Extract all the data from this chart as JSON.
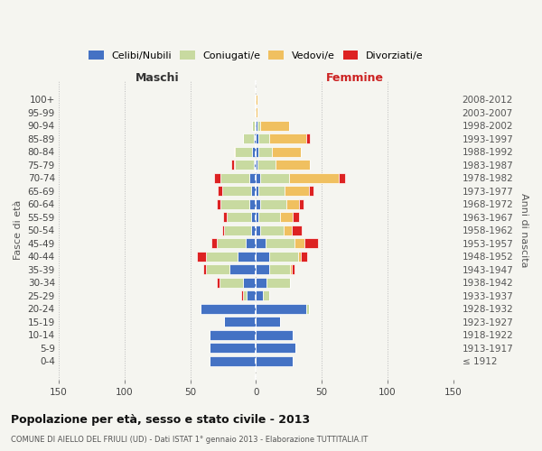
{
  "age_groups": [
    "100+",
    "95-99",
    "90-94",
    "85-89",
    "80-84",
    "75-79",
    "70-74",
    "65-69",
    "60-64",
    "55-59",
    "50-54",
    "45-49",
    "40-44",
    "35-39",
    "30-34",
    "25-29",
    "20-24",
    "15-19",
    "10-14",
    "5-9",
    "0-4"
  ],
  "birth_years": [
    "≤ 1912",
    "1913-1917",
    "1918-1922",
    "1923-1927",
    "1928-1932",
    "1933-1937",
    "1938-1942",
    "1943-1947",
    "1948-1952",
    "1953-1957",
    "1958-1962",
    "1963-1967",
    "1968-1972",
    "1973-1977",
    "1978-1982",
    "1983-1987",
    "1988-1992",
    "1993-1997",
    "1998-2002",
    "2003-2007",
    "2008-2012"
  ],
  "males": {
    "celibe": [
      1,
      0,
      1,
      2,
      3,
      2,
      5,
      4,
      5,
      4,
      4,
      8,
      14,
      20,
      10,
      7,
      42,
      24,
      35,
      35,
      35
    ],
    "coniugato": [
      0,
      0,
      2,
      8,
      13,
      14,
      22,
      22,
      22,
      18,
      20,
      22,
      24,
      18,
      18,
      3,
      0,
      0,
      0,
      0,
      0
    ],
    "vedovo": [
      0,
      0,
      0,
      0,
      1,
      1,
      0,
      0,
      0,
      0,
      0,
      0,
      0,
      0,
      0,
      0,
      0,
      0,
      0,
      0,
      0
    ],
    "divorziato": [
      0,
      0,
      0,
      0,
      0,
      2,
      5,
      3,
      3,
      3,
      2,
      4,
      7,
      2,
      2,
      1,
      0,
      0,
      0,
      0,
      0
    ]
  },
  "females": {
    "nubile": [
      0,
      0,
      1,
      2,
      2,
      1,
      3,
      2,
      3,
      2,
      3,
      7,
      10,
      10,
      8,
      5,
      38,
      18,
      28,
      30,
      28
    ],
    "coniugata": [
      0,
      0,
      2,
      8,
      10,
      14,
      22,
      20,
      20,
      16,
      18,
      22,
      22,
      16,
      18,
      5,
      2,
      0,
      0,
      0,
      0
    ],
    "vedova": [
      1,
      1,
      22,
      28,
      22,
      26,
      38,
      18,
      10,
      10,
      6,
      8,
      2,
      1,
      0,
      0,
      0,
      0,
      0,
      0,
      0
    ],
    "divorziata": [
      0,
      0,
      0,
      3,
      0,
      0,
      5,
      4,
      3,
      5,
      8,
      10,
      5,
      2,
      0,
      0,
      0,
      0,
      0,
      0,
      0
    ]
  },
  "colors": {
    "celibe": "#4472c4",
    "coniugato": "#c8daa0",
    "vedovo": "#f0c060",
    "divorziato": "#dd2222"
  },
  "title": "Popolazione per età, sesso e stato civile - 2013",
  "subtitle": "COMUNE DI AIELLO DEL FRIULI (UD) - Dati ISTAT 1° gennaio 2013 - Elaborazione TUTTITALIA.IT",
  "xlabel_left": "Maschi",
  "xlabel_right": "Femmine",
  "ylabel_left": "Fasce di età",
  "ylabel_right": "Anni di nascita",
  "xlim": 150,
  "legend_labels": [
    "Celibi/Nubili",
    "Coniugati/e",
    "Vedovi/e",
    "Divorziati/e"
  ],
  "bg_color": "#f5f5f0"
}
